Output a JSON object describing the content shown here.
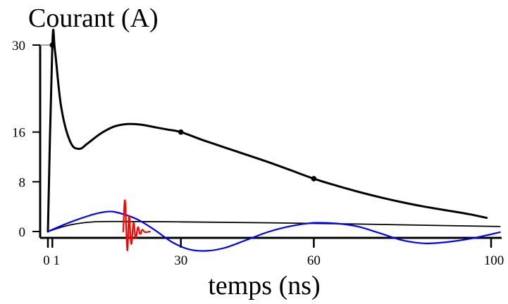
{
  "chart_data": {
    "type": "line",
    "title": "Courant (A)",
    "xlabel": "temps (ns)",
    "ylabel": "Courant (A)",
    "xlim": [
      -0.5,
      103
    ],
    "ylim": [
      -3,
      33
    ],
    "x_ticks": [
      {
        "value": 0,
        "label": "0"
      },
      {
        "value": 1,
        "label": "1"
      },
      {
        "value": 30,
        "label": "30"
      },
      {
        "value": 60,
        "label": "60"
      },
      {
        "value": 100,
        "label": "100"
      }
    ],
    "y_ticks": [
      {
        "value": 0,
        "label": "0"
      },
      {
        "value": 8,
        "label": "8"
      },
      {
        "value": 16,
        "label": "16"
      },
      {
        "value": 30,
        "label": "30"
      }
    ],
    "grid": false,
    "legend": "none",
    "series": [
      {
        "color": "#000000",
        "style": "thick",
        "points": [
          [
            0,
            0
          ],
          [
            1,
            30
          ],
          [
            1.6,
            29
          ],
          [
            3,
            20
          ],
          [
            5,
            14.5
          ],
          [
            7,
            13.3
          ],
          [
            9,
            14.2
          ],
          [
            12,
            15.8
          ],
          [
            15,
            16.9
          ],
          [
            18,
            17.3
          ],
          [
            21,
            17.2
          ],
          [
            24,
            16.8
          ],
          [
            27,
            16.4
          ],
          [
            30,
            16
          ],
          [
            35,
            14.7
          ],
          [
            40,
            13.5
          ],
          [
            45,
            12.3
          ],
          [
            50,
            11.1
          ],
          [
            55,
            9.8
          ],
          [
            60,
            8.5
          ],
          [
            65,
            7.4
          ],
          [
            70,
            6.4
          ],
          [
            75,
            5.5
          ],
          [
            80,
            4.7
          ],
          [
            85,
            4
          ],
          [
            90,
            3.4
          ],
          [
            95,
            2.8
          ],
          [
            99,
            2.2
          ]
        ],
        "markers": [
          [
            1,
            30
          ],
          [
            30,
            16
          ],
          [
            60,
            8.5
          ]
        ]
      },
      {
        "color": "#000000",
        "style": "thin",
        "points": [
          [
            0,
            0
          ],
          [
            4,
            0.9
          ],
          [
            8,
            1.4
          ],
          [
            12,
            1.6
          ],
          [
            20,
            1.6
          ],
          [
            30,
            1.55
          ],
          [
            50,
            1.4
          ],
          [
            70,
            1.2
          ],
          [
            90,
            0.95
          ],
          [
            102,
            0.8
          ]
        ]
      },
      {
        "color": "#0000ff",
        "style": "normal",
        "points": [
          [
            0,
            0
          ],
          [
            5,
            1.5
          ],
          [
            10,
            2.7
          ],
          [
            13.5,
            3.2
          ],
          [
            16,
            3
          ],
          [
            20,
            2
          ],
          [
            24,
            0.3
          ],
          [
            28,
            -1.7
          ],
          [
            32,
            -2.9
          ],
          [
            36,
            -3.1
          ],
          [
            40,
            -2.6
          ],
          [
            45,
            -1.3
          ],
          [
            50,
            0
          ],
          [
            55,
            0.9
          ],
          [
            60,
            1.4
          ],
          [
            65,
            1.3
          ],
          [
            70,
            0.8
          ],
          [
            75,
            -0.3
          ],
          [
            80,
            -1.4
          ],
          [
            85,
            -1.9
          ],
          [
            90,
            -1.7
          ],
          [
            95,
            -1.2
          ],
          [
            99,
            -0.6
          ],
          [
            102,
            -0.1
          ]
        ]
      },
      {
        "color": "#ff0000",
        "style": "normal",
        "points": [
          [
            17,
            0
          ],
          [
            17.4,
            5
          ],
          [
            17.9,
            -3
          ],
          [
            18.3,
            2.5
          ],
          [
            18.8,
            -2
          ],
          [
            19.3,
            1.4
          ],
          [
            19.8,
            -1
          ],
          [
            20.3,
            0.7
          ],
          [
            20.8,
            -0.4
          ],
          [
            21.3,
            0.3
          ],
          [
            21.9,
            -0.1
          ],
          [
            23,
            0
          ]
        ]
      }
    ]
  }
}
